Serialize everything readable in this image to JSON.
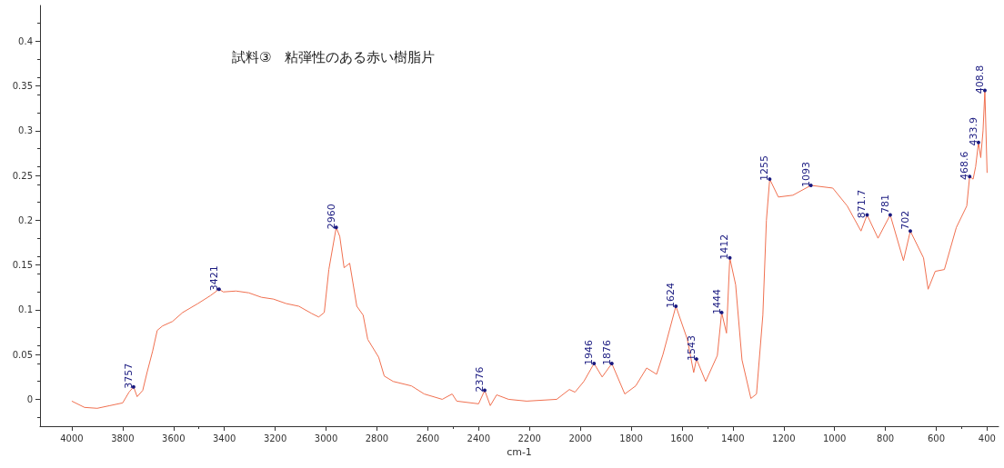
{
  "chart_data": {
    "type": "line",
    "title": "試料③　粘弾性のある赤い樹脂片",
    "xlabel": "cm-1",
    "x": [
      4000,
      3950,
      3900,
      3850,
      3800,
      3775,
      3757,
      3743,
      3721,
      3704,
      3682,
      3664,
      3643,
      3604,
      3564,
      3504,
      3454,
      3421,
      3404,
      3354,
      3304,
      3254,
      3207,
      3157,
      3107,
      3057,
      3029,
      3007,
      2989,
      2960,
      2946,
      2929,
      2907,
      2879,
      2854,
      2836,
      2793,
      2771,
      2736,
      2664,
      2614,
      2543,
      2504,
      2486,
      2400,
      2376,
      2354,
      2329,
      2282,
      2211,
      2093,
      2043,
      2021,
      1986,
      1946,
      1914,
      1876,
      1825,
      1782,
      1739,
      1700,
      1675,
      1624,
      1579,
      1554,
      1543,
      1507,
      1461,
      1444,
      1425,
      1412,
      1389,
      1364,
      1329,
      1307,
      1282,
      1268,
      1255,
      1221,
      1164,
      1093,
      1007,
      950,
      896,
      872,
      829,
      781,
      729,
      702,
      650,
      632,
      604,
      568,
      521,
      480,
      468.6,
      455,
      445,
      433.9,
      425,
      416,
      408.8,
      400
    ],
    "values": [
      -0.002,
      -0.009,
      -0.01,
      -0.007,
      -0.004,
      0.008,
      0.014,
      0.003,
      0.01,
      0.03,
      0.054,
      0.077,
      0.082,
      0.087,
      0.097,
      0.107,
      0.116,
      0.123,
      0.12,
      0.121,
      0.119,
      0.114,
      0.112,
      0.107,
      0.104,
      0.096,
      0.092,
      0.097,
      0.145,
      0.192,
      0.182,
      0.147,
      0.152,
      0.104,
      0.094,
      0.067,
      0.047,
      0.026,
      0.02,
      0.015,
      0.006,
      0,
      0.006,
      -0.002,
      -0.005,
      0.01,
      -0.007,
      0.005,
      0,
      -0.002,
      0,
      0.011,
      0.008,
      0.02,
      0.04,
      0.025,
      0.04,
      0.006,
      0.015,
      0.035,
      0.028,
      0.05,
      0.104,
      0.067,
      0.03,
      0.045,
      0.02,
      0.049,
      0.097,
      0.074,
      0.158,
      0.128,
      0.044,
      0.001,
      0.006,
      0.094,
      0.2,
      0.246,
      0.226,
      0.228,
      0.239,
      0.236,
      0.216,
      0.188,
      0.206,
      0.18,
      0.206,
      0.155,
      0.188,
      0.158,
      0.123,
      0.143,
      0.145,
      0.192,
      0.216,
      0.249,
      0.246,
      0.26,
      0.287,
      0.27,
      0.3,
      0.345,
      0.253
    ],
    "color": "#f07050",
    "marker": "none",
    "grid": false,
    "xlim": [
      4125,
      355
    ],
    "xticks": [
      4000,
      3800,
      3600,
      3400,
      3200,
      3000,
      2800,
      2600,
      2400,
      2200,
      2000,
      1800,
      1600,
      1400,
      1200,
      1000,
      800,
      600,
      400
    ],
    "ylim": [
      -0.03,
      0.44
    ],
    "yticks": [
      0,
      0.05,
      0.1,
      0.15,
      0.2,
      0.25,
      0.3,
      0.35,
      0.4
    ],
    "annotations": [
      {
        "text": "3757",
        "x": 3757,
        "y": 0.014
      },
      {
        "text": "3421",
        "x": 3421,
        "y": 0.123
      },
      {
        "text": "2960",
        "x": 2960,
        "y": 0.192
      },
      {
        "text": "2376",
        "x": 2376,
        "y": 0.01
      },
      {
        "text": "1946",
        "x": 1946,
        "y": 0.04
      },
      {
        "text": "1876",
        "x": 1876,
        "y": 0.04
      },
      {
        "text": "1624",
        "x": 1624,
        "y": 0.104
      },
      {
        "text": "1543",
        "x": 1543,
        "y": 0.045
      },
      {
        "text": "1444",
        "x": 1444,
        "y": 0.097
      },
      {
        "text": "1412",
        "x": 1412,
        "y": 0.158
      },
      {
        "text": "1255",
        "x": 1255,
        "y": 0.246
      },
      {
        "text": "1093",
        "x": 1093,
        "y": 0.239
      },
      {
        "text": "871.7",
        "x": 872,
        "y": 0.206
      },
      {
        "text": "781",
        "x": 781,
        "y": 0.206
      },
      {
        "text": "702",
        "x": 702,
        "y": 0.188
      },
      {
        "text": "468.6",
        "x": 468.6,
        "y": 0.249
      },
      {
        "text": "433.9",
        "x": 433.9,
        "y": 0.287
      },
      {
        "text": "408.8",
        "x": 408.8,
        "y": 0.345
      }
    ]
  }
}
